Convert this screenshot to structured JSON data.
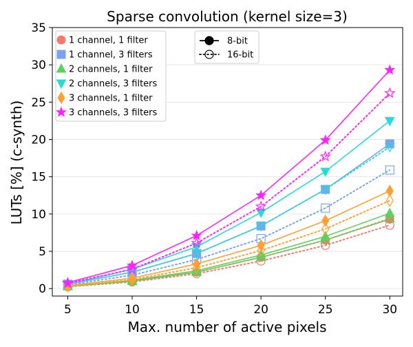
{
  "chart_data": {
    "type": "line",
    "title": "Sparse convolution (kernel size=3)",
    "xlabel": "Max. number of active pixels",
    "ylabel": "LUTs [%] (c-synth)",
    "x": [
      5,
      10,
      15,
      20,
      25,
      30
    ],
    "xlim": [
      3.8,
      31.0
    ],
    "ylim": [
      -1.0,
      35
    ],
    "xticks": [
      5,
      10,
      15,
      20,
      25,
      30
    ],
    "yticks": [
      0,
      5,
      10,
      15,
      20,
      25,
      30,
      35
    ],
    "grid": "horizontal",
    "series": [
      {
        "name": "1 channel, 1 filter",
        "color": "#f47a6b",
        "marker": "circle",
        "values_8bit": [
          0.3,
          1.0,
          2.2,
          4.2,
          6.5,
          9.3
        ],
        "values_16bit": [
          0.25,
          0.9,
          2.0,
          3.7,
          5.8,
          8.5
        ]
      },
      {
        "name": "1 channel, 3 filters",
        "color": "#7aa5ec",
        "marker": "square",
        "values_8bit": [
          0.6,
          2.2,
          4.7,
          8.4,
          13.3,
          19.4
        ],
        "values_16bit": [
          0.5,
          1.8,
          3.9,
          6.7,
          10.8,
          15.9
        ]
      },
      {
        "name": "2 channels, 1 filter",
        "color": "#5bd35b",
        "marker": "triangle-up",
        "values_8bit": [
          0.3,
          1.1,
          2.4,
          4.5,
          7.0,
          10.1
        ],
        "values_16bit": [
          0.3,
          1.0,
          2.2,
          4.2,
          6.5,
          9.4
        ]
      },
      {
        "name": "2 channels, 3 filters",
        "color": "#2bd9d9",
        "marker": "triangle-down",
        "values_8bit": [
          0.6,
          2.6,
          5.6,
          10.2,
          15.7,
          22.5
        ],
        "values_16bit": [
          0.6,
          2.2,
          4.7,
          8.4,
          13.3,
          19.0
        ]
      },
      {
        "name": "3 channels, 1 filter",
        "color": "#ffa033",
        "marker": "diamond",
        "values_8bit": [
          0.4,
          1.4,
          3.3,
          5.8,
          9.1,
          13.1
        ],
        "values_16bit": [
          0.3,
          1.2,
          2.8,
          5.1,
          8.0,
          11.8
        ]
      },
      {
        "name": "3 channels, 3 filters",
        "color": "#ff22ff",
        "marker": "star",
        "values_8bit": [
          0.8,
          3.1,
          7.1,
          12.5,
          19.9,
          29.3
        ],
        "values_16bit": [
          0.7,
          2.6,
          6.1,
          11.0,
          17.7,
          26.2
        ]
      }
    ],
    "style_legend": [
      {
        "label": "8-bit",
        "line": "solid",
        "marker": "filled"
      },
      {
        "label": "16-bit",
        "line": "dotted",
        "marker": "hollow"
      }
    ],
    "legend_placement": "upper-left"
  }
}
